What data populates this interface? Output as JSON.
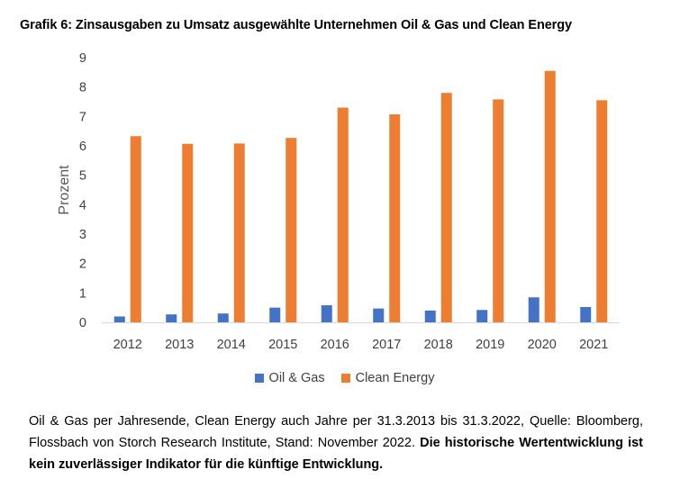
{
  "title": "Grafik 6: Zinsausgaben zu Umsatz ausgewählte Unternehmen Oil & Gas und Clean Energy",
  "footnote": {
    "text": "Oil & Gas per Jahresende, Clean Energy auch Jahre per 31.3.2013 bis 31.3.2022, Quelle: Bloomberg, Flossbach von Storch Research Institute, Stand: November 2022.",
    "bold": "Die historische Wertentwicklung ist kein zuverlässiger Indikator für die künftige Entwicklung."
  },
  "chart_data": {
    "type": "bar",
    "title": "Grafik 6: Zinsausgaben zu Umsatz ausgewählte Unternehmen Oil & Gas und Clean Energy",
    "xlabel": "",
    "ylabel": "Prozent",
    "ylim": [
      0,
      9
    ],
    "yticks": [
      0,
      1,
      2,
      3,
      4,
      5,
      6,
      7,
      8,
      9
    ],
    "grid": false,
    "legend_position": "bottom",
    "categories": [
      "2012",
      "2013",
      "2014",
      "2015",
      "2016",
      "2017",
      "2018",
      "2019",
      "2020",
      "2021"
    ],
    "series": [
      {
        "name": "Oil & Gas",
        "color": "#4472C4",
        "values": [
          0.2,
          0.27,
          0.3,
          0.5,
          0.58,
          0.47,
          0.4,
          0.42,
          0.85,
          0.52
        ]
      },
      {
        "name": "Clean Energy",
        "color": "#ED7D31",
        "values": [
          6.33,
          6.07,
          6.08,
          6.27,
          7.3,
          7.07,
          7.8,
          7.58,
          8.55,
          7.55
        ]
      }
    ]
  }
}
